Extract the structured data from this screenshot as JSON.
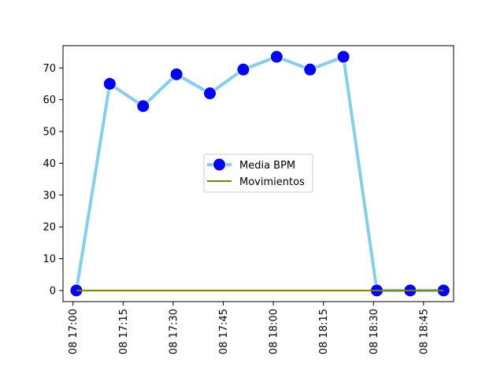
{
  "chart_data": {
    "type": "line",
    "title": "",
    "xlabel": "",
    "ylabel": "",
    "x": [
      "08 17:01",
      "08 17:11",
      "08 17:21",
      "08 17:31",
      "08 17:41",
      "08 17:51",
      "08 18:01",
      "08 18:11",
      "08 18:21",
      "08 18:31",
      "08 18:41",
      "08 18:51"
    ],
    "xticks": [
      "08 17:00",
      "08 17:15",
      "08 17:30",
      "08 17:45",
      "08 18:00",
      "08 18:15",
      "08 18:30",
      "08 18:45"
    ],
    "xlim": [
      "08 16:57",
      "08 18:54"
    ],
    "ylim": [
      -3.5,
      77
    ],
    "yticks": [
      0,
      10,
      20,
      30,
      40,
      50,
      60,
      70
    ],
    "series": [
      {
        "name": "Media BPM",
        "color": "#87ceeb",
        "marker_color": "#0000ff",
        "values": [
          0,
          65,
          58,
          68,
          62,
          69.5,
          73.5,
          69.5,
          73.5,
          0,
          0,
          0
        ]
      },
      {
        "name": "Movimientos",
        "color": "#808000",
        "values": [
          0,
          0,
          0,
          0,
          0,
          0,
          0,
          0,
          0,
          0,
          0,
          0
        ]
      }
    ],
    "legend_position": "center-right",
    "grid": false
  }
}
